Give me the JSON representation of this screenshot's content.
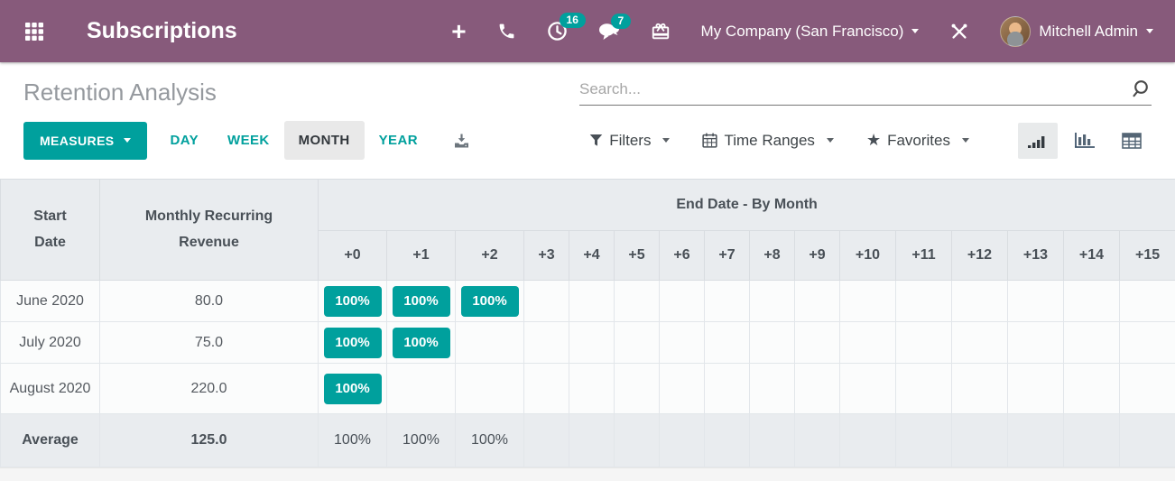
{
  "nav": {
    "app_title": "Subscriptions",
    "company_label": "My Company (San Francisco)",
    "user_name": "Mitchell Admin",
    "activity_count": "16",
    "message_count": "7"
  },
  "icons": {
    "plus": "+",
    "star": "★"
  },
  "control_panel": {
    "page_title": "Retention Analysis",
    "search_placeholder": "Search...",
    "measures_label": "MEASURES",
    "intervals": [
      {
        "label": "DAY",
        "active": false
      },
      {
        "label": "WEEK",
        "active": false
      },
      {
        "label": "MONTH",
        "active": true
      },
      {
        "label": "YEAR",
        "active": false
      }
    ],
    "filters_label": "Filters",
    "time_ranges_label": "Time Ranges",
    "favorites_label": "Favorites"
  },
  "table": {
    "start_date_header": "Start Date",
    "measure_header": "Monthly Recurring Revenue",
    "group_header": "End Date - By Month",
    "month_columns": [
      "+0",
      "+1",
      "+2",
      "+3",
      "+4",
      "+5",
      "+6",
      "+7",
      "+8",
      "+9",
      "+10",
      "+11",
      "+12",
      "+13",
      "+14",
      "+15"
    ],
    "rows": [
      {
        "start_date": "June 2020",
        "mrr": "80.0",
        "retention": [
          "100%",
          "100%",
          "100%"
        ]
      },
      {
        "start_date": "July 2020",
        "mrr": "75.0",
        "retention": [
          "100%",
          "100%"
        ]
      },
      {
        "start_date": "August 2020",
        "mrr": "220.0",
        "retention": [
          "100%"
        ]
      }
    ],
    "average_row": {
      "label": "Average",
      "mrr": "125.0",
      "retention": [
        "100%",
        "100%",
        "100%"
      ]
    }
  },
  "colors": {
    "nav_bg": "#875a7b",
    "accent_teal": "#00a09d",
    "header_gray": "#e9ecef",
    "badge_text": "#ffffff"
  }
}
